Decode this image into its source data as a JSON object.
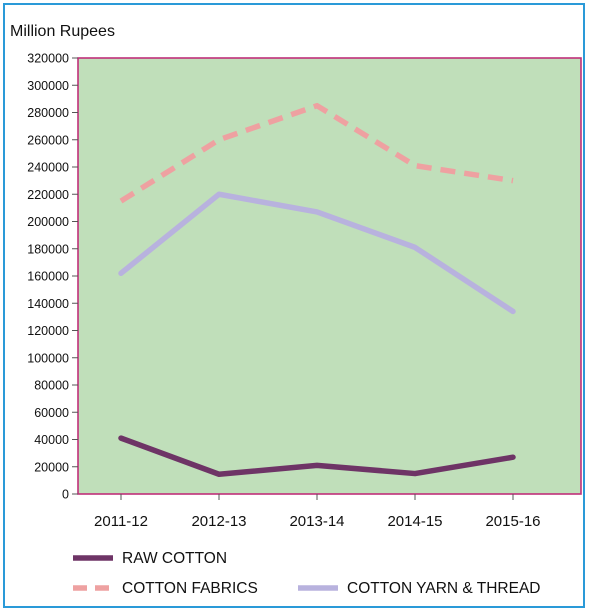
{
  "chart_data": {
    "type": "line",
    "ylabel": "Million Rupees",
    "categories": [
      "2011-12",
      "2012-13",
      "2013-14",
      "2014-15",
      "2015-16"
    ],
    "ylim": [
      0,
      320000
    ],
    "ytick_step": 20000,
    "grid": false,
    "plot_background": "#c0dfba",
    "plot_border": "#c0307a",
    "series": [
      {
        "name": "RAW COTTON",
        "values": [
          41000,
          14500,
          21000,
          15000,
          27000
        ],
        "color": "#6e3466",
        "style": "solid"
      },
      {
        "name": "COTTON FABRICS",
        "values": [
          215000,
          260000,
          285000,
          241000,
          230000
        ],
        "color": "#eea1a1",
        "style": "dashed"
      },
      {
        "name": "COTTON YARN & THREAD",
        "values": [
          162000,
          220000,
          207000,
          181000,
          134000
        ],
        "color": "#b8b2de",
        "style": "solid"
      }
    ],
    "legend_position": "bottom"
  }
}
